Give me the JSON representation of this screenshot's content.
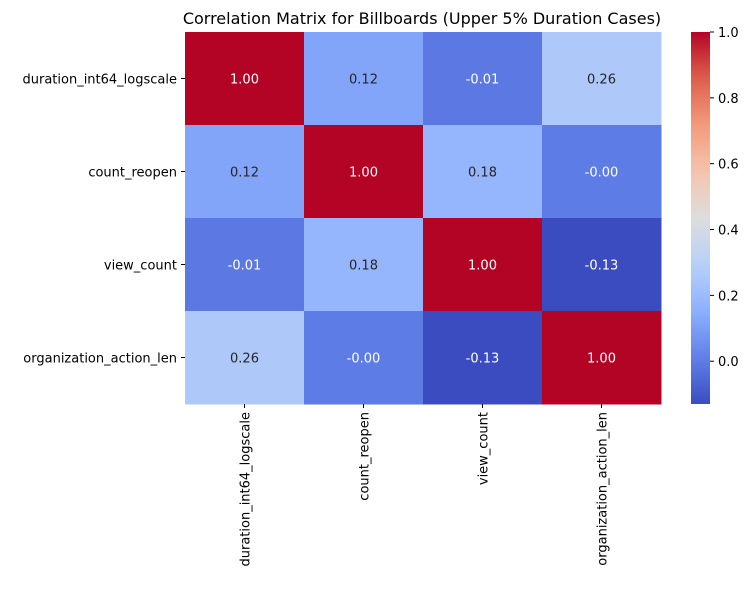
{
  "chart_data": {
    "type": "heatmap",
    "title": "Correlation Matrix for Billboards (Upper 5% Duration Cases)",
    "rows": [
      "duration_int64_logscale",
      "count_reopen",
      "view_count",
      "organization_action_len"
    ],
    "columns": [
      "duration_int64_logscale",
      "count_reopen",
      "view_count",
      "organization_action_len"
    ],
    "values": [
      [
        1.0,
        0.12,
        -0.01,
        0.26
      ],
      [
        0.12,
        1.0,
        0.18,
        -0.0
      ],
      [
        -0.01,
        0.18,
        1.0,
        -0.13
      ],
      [
        0.26,
        -0.0,
        -0.13,
        1.0
      ]
    ],
    "cell_labels": [
      [
        "1.00",
        "0.12",
        "-0.01",
        "0.26"
      ],
      [
        "0.12",
        "1.00",
        "0.18",
        "-0.00"
      ],
      [
        "-0.01",
        "0.18",
        "1.00",
        "-0.13"
      ],
      [
        "0.26",
        "-0.00",
        "-0.13",
        "1.00"
      ]
    ],
    "colormap": "coolwarm",
    "colorbar": {
      "range": [
        -0.13,
        1.0
      ],
      "ticks": [
        0.0,
        0.2,
        0.4,
        0.6,
        0.8,
        1.0
      ],
      "tick_labels": [
        "0.0",
        "0.2",
        "0.4",
        "0.6",
        "0.8",
        "1.0"
      ]
    }
  }
}
